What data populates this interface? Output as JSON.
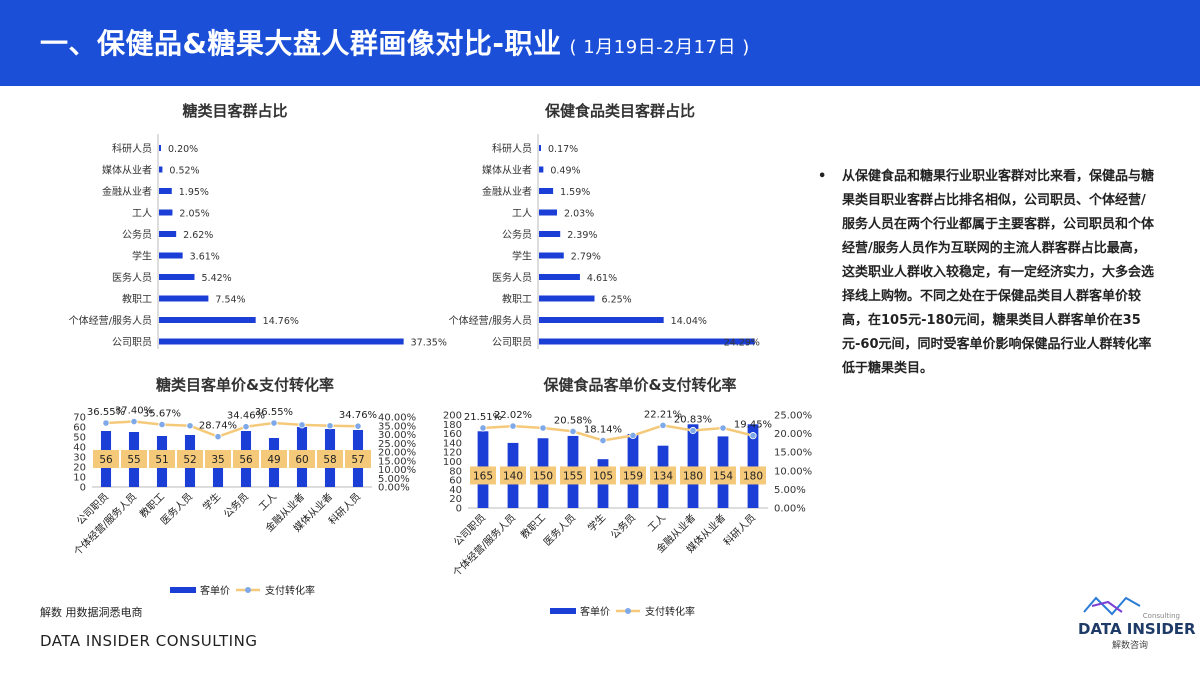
{
  "header": {
    "title": "一、保健品&糖果大盘人群画像对比-职业",
    "date_range": "( 1月19日-2月17日 )"
  },
  "colors": {
    "header_bg": "#1b4fd8",
    "bar": "#1b3fd6",
    "line": "#f5c97a",
    "label_bg": "#f5c97a"
  },
  "chart_data": [
    {
      "id": "candy_share",
      "type": "bar",
      "orientation": "horizontal",
      "title": "糖类目客群占比",
      "categories": [
        "科研人员",
        "媒体从业者",
        "金融从业者",
        "工人",
        "公务员",
        "学生",
        "医务人员",
        "教职工",
        "个体经营/服务人员",
        "公司职员"
      ],
      "values": [
        0.2,
        0.52,
        1.95,
        2.05,
        2.62,
        3.61,
        5.42,
        7.54,
        14.76,
        37.35
      ],
      "labels": [
        "0.20%",
        "0.52%",
        "1.95%",
        "2.05%",
        "2.62%",
        "3.61%",
        "5.42%",
        "7.54%",
        "14.76%",
        "37.35%"
      ],
      "xlim": [
        0,
        40
      ]
    },
    {
      "id": "health_share",
      "type": "bar",
      "orientation": "horizontal",
      "title": "保健食品类目客群占比",
      "categories": [
        "科研人员",
        "媒体从业者",
        "金融从业者",
        "工人",
        "公务员",
        "学生",
        "医务人员",
        "教职工",
        "个体经营/服务人员",
        "公司职员"
      ],
      "values": [
        0.17,
        0.49,
        1.59,
        2.03,
        2.39,
        2.79,
        4.61,
        6.25,
        14.04,
        24.29
      ],
      "labels": [
        "0.17%",
        "0.49%",
        "1.59%",
        "2.03%",
        "2.39%",
        "2.79%",
        "4.61%",
        "6.25%",
        "14.04%",
        "24.29%"
      ],
      "xlim": [
        0,
        25
      ]
    },
    {
      "id": "candy_price_conv",
      "type": "bar",
      "title": "糖类目客单价&支付转化率",
      "categories": [
        "公司职员",
        "个体经营/服务人员",
        "教职工",
        "医务人员",
        "学生",
        "公务员",
        "工人",
        "金融从业者",
        "媒体从业者",
        "科研人员"
      ],
      "series": [
        {
          "name": "客单价",
          "type": "bar",
          "values": [
            56,
            55,
            51,
            52,
            35,
            56,
            49,
            60,
            58,
            57
          ]
        },
        {
          "name": "支付转化率",
          "type": "line",
          "values": [
            36.55,
            37.4,
            35.67,
            35.0,
            28.74,
            34.46,
            36.55,
            35.5,
            35.0,
            34.76
          ]
        }
      ],
      "line_labels": [
        "36.55%",
        "37.40%",
        "35.67%",
        "28.74%",
        "34.46%",
        "36.55%",
        "34.76%"
      ],
      "ylim": [
        0,
        70
      ],
      "y_ticks": [
        "0",
        "10",
        "20",
        "30",
        "40",
        "50",
        "60",
        "70"
      ],
      "y2lim": [
        0,
        40
      ],
      "y2_ticks": [
        "0.00%",
        "5.00%",
        "10.00%",
        "15.00%",
        "20.00%",
        "25.00%",
        "30.00%",
        "35.00%",
        "40.00%"
      ],
      "legend": [
        "客单价",
        "支付转化率"
      ]
    },
    {
      "id": "health_price_conv",
      "type": "bar",
      "title": "保健食品客单价&支付转化率",
      "categories": [
        "公司职员",
        "个体经营/服务人员",
        "教职工",
        "医务人员",
        "学生",
        "公务员",
        "工人",
        "金融从业者",
        "媒体从业者",
        "科研人员"
      ],
      "series": [
        {
          "name": "客单价",
          "type": "bar",
          "values": [
            165,
            140,
            150,
            155,
            105,
            159,
            134,
            180,
            154,
            180
          ]
        },
        {
          "name": "支付转化率",
          "type": "line",
          "values": [
            21.51,
            22.02,
            21.5,
            20.58,
            18.14,
            19.5,
            22.21,
            20.83,
            21.5,
            19.45
          ]
        }
      ],
      "line_labels": [
        "21.51%",
        "22.02%",
        "20.58%",
        "18.14%",
        "22.21%",
        "20.83%",
        "19.45%"
      ],
      "ylim": [
        0,
        200
      ],
      "y_ticks": [
        "0",
        "20",
        "40",
        "60",
        "80",
        "100",
        "120",
        "140",
        "160",
        "180",
        "200"
      ],
      "y2lim": [
        0,
        25
      ],
      "y2_ticks": [
        "0.00%",
        "5.00%",
        "10.00%",
        "15.00%",
        "20.00%",
        "25.00%"
      ],
      "legend": [
        "客单价",
        "支付转化率"
      ]
    }
  ],
  "notes": {
    "bullet": "•",
    "text": "从保健食品和糖果行业职业客群对比来看，保健品与糖果类目职业客群占比排名相似，公司职员、个体经营/服务人员在两个行业都属于主要客群，公司职员和个体经营/服务人员作为互联网的主流人群客群占比最高，这类职业人群收入较稳定，有一定经济实力，大多会选择线上购物。不同之处在于保健品类目人群客单价较高，在105元-180元间，糖果类目人群客单价在35元-60元间，同时受客单价影响保健品行业人群转化率低于糖果类目。"
  },
  "source": "解数 用数据洞悉电商",
  "footer": {
    "brand": "DATA INSIDER CONSULTING"
  },
  "logo": {
    "name": "DATA INSIDER",
    "consulting": "Consulting",
    "cn": "解数咨询"
  }
}
